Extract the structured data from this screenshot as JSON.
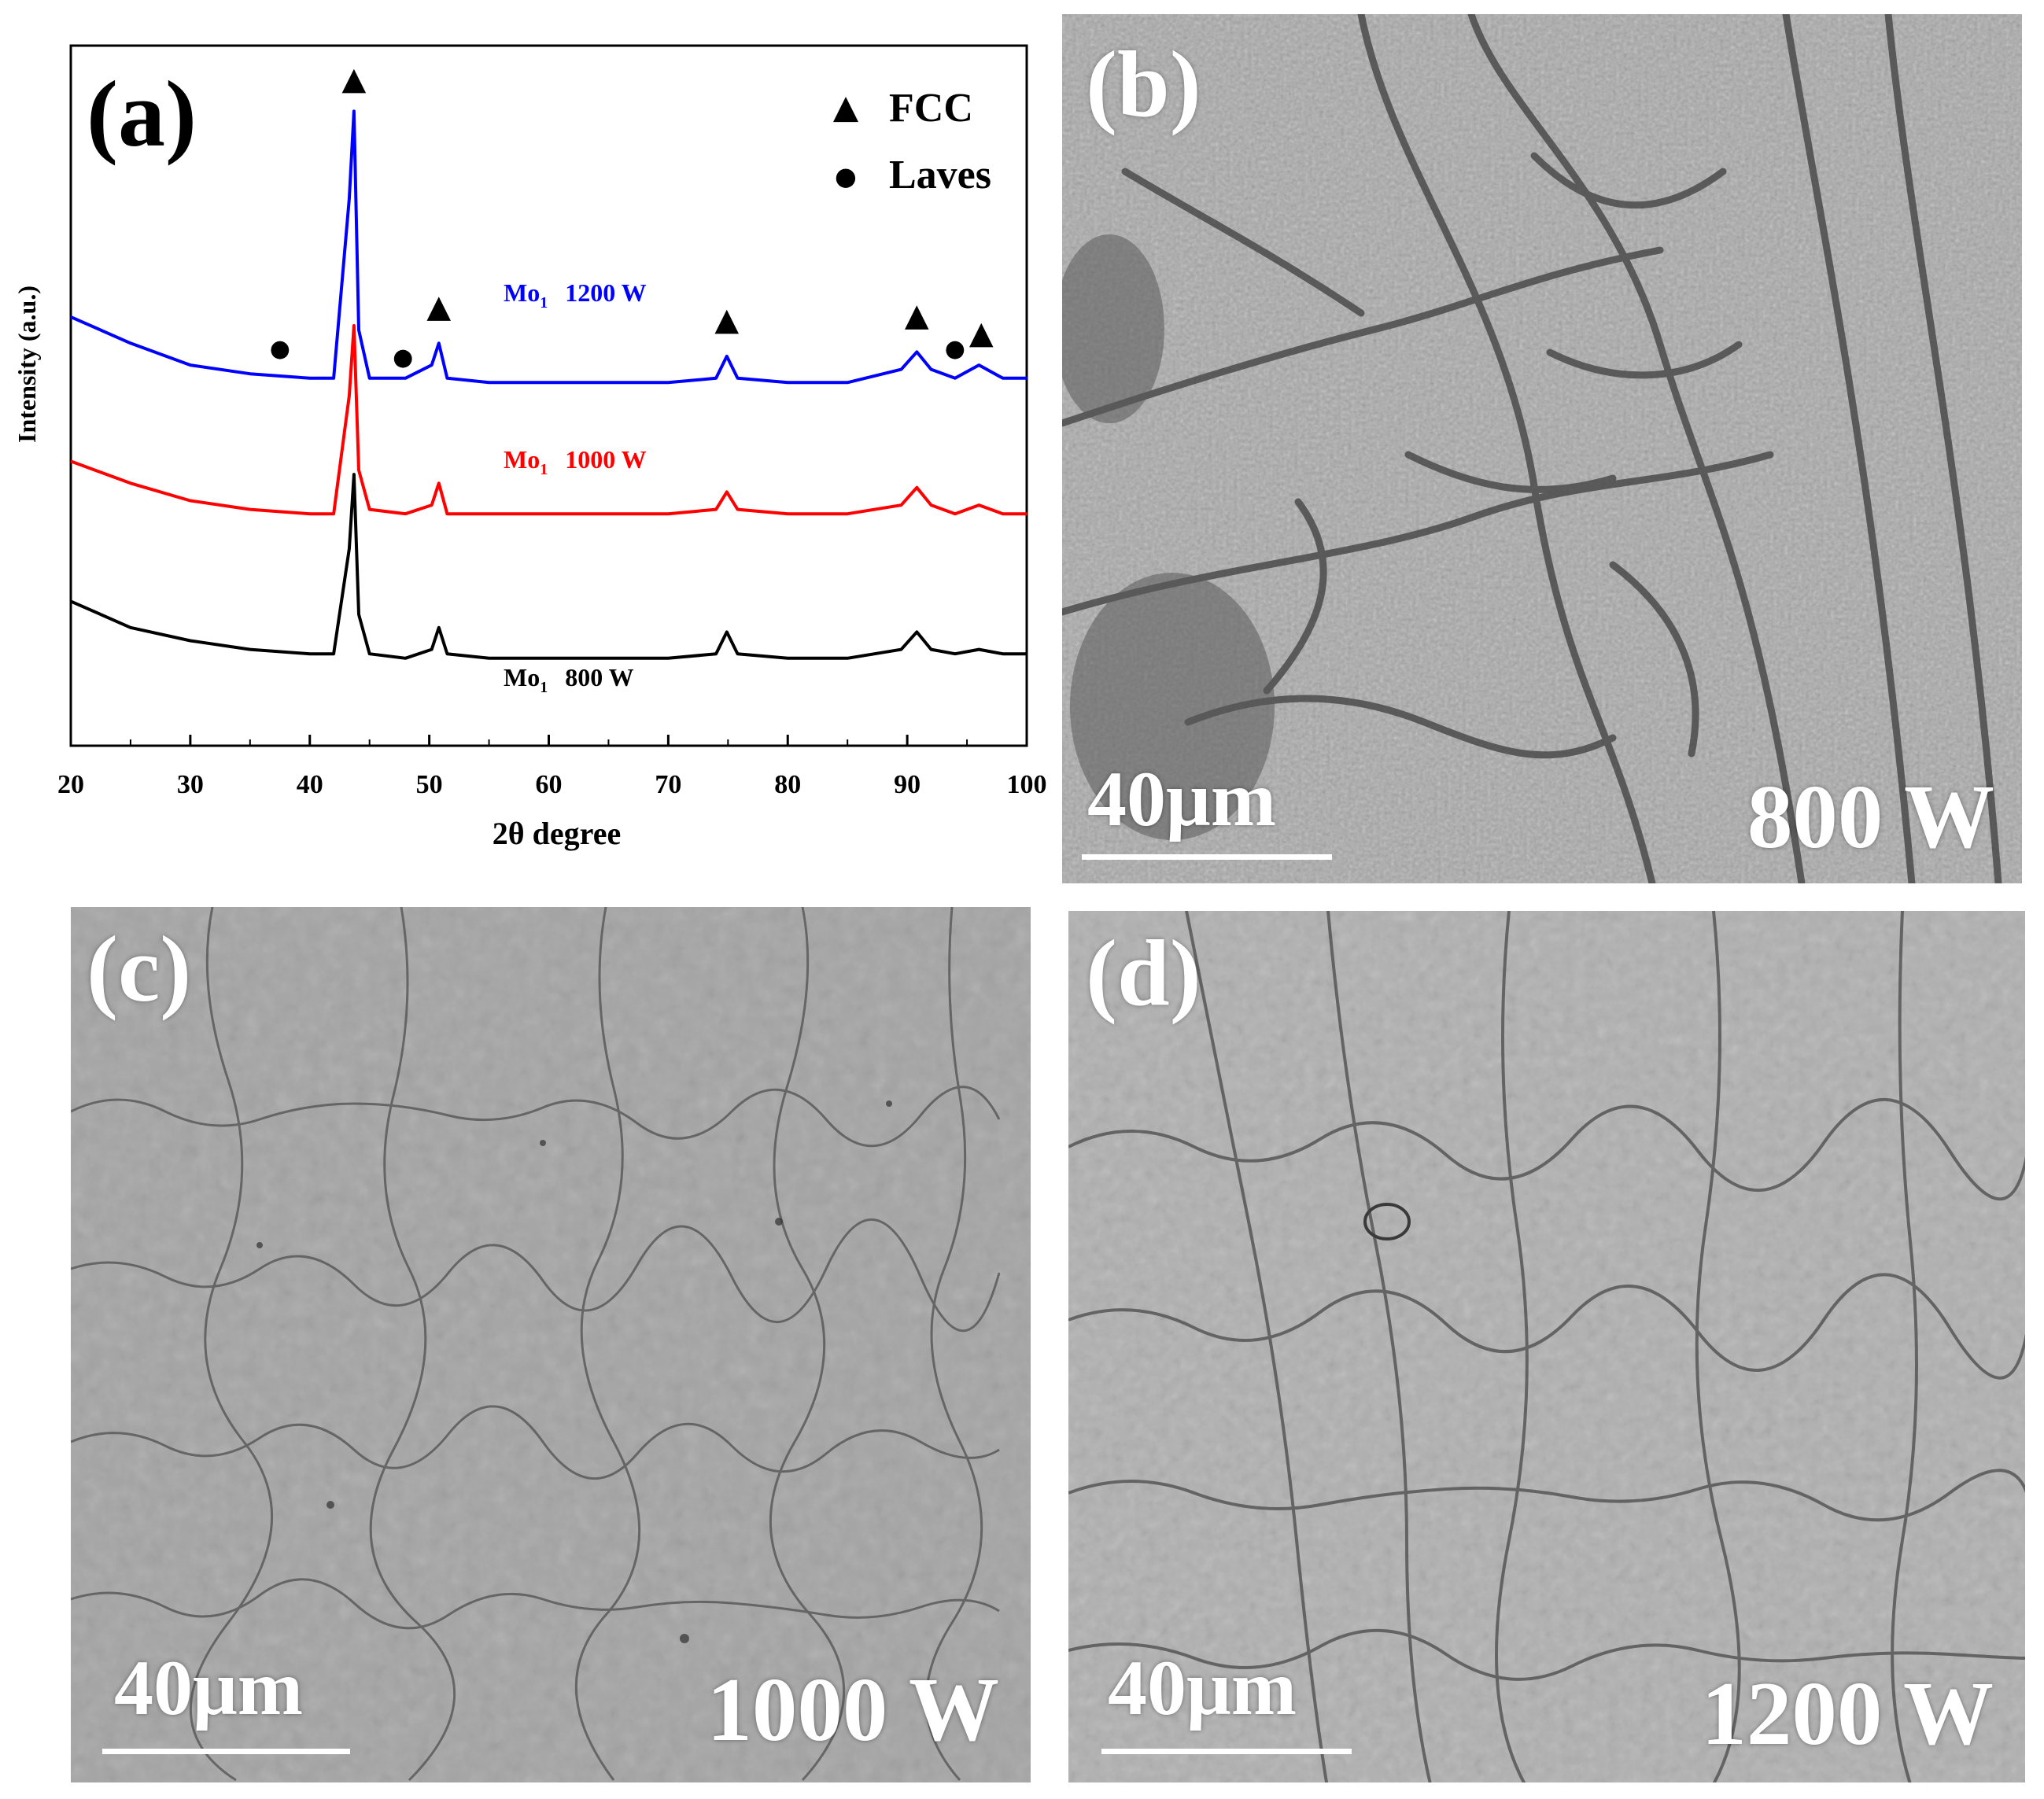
{
  "chart_data": {
    "type": "line",
    "panel_label": "(a)",
    "xlabel": "2θ degree",
    "ylabel": "Intensity (a.u.)",
    "xlim": [
      20,
      100
    ],
    "xticks": [
      20,
      30,
      40,
      50,
      60,
      70,
      80,
      90,
      100
    ],
    "grid": false,
    "legend": [
      {
        "marker": "▲",
        "label": "FCC"
      },
      {
        "marker": "●",
        "label": "Laves"
      }
    ],
    "legend_position": "top-right",
    "series": [
      {
        "name": "Mo1 800 W",
        "label_main": "Mo",
        "label_sub": "1",
        "label_power": "800 W",
        "color": "#000000",
        "x": [
          20,
          25,
          30,
          35,
          40,
          42,
          43.3,
          43.7,
          44.1,
          45,
          48,
          50.2,
          50.8,
          51.5,
          55,
          60,
          65,
          70,
          74,
          74.9,
          75.8,
          80,
          85,
          89.5,
          90.8,
          92,
          94,
          96,
          98,
          100
        ],
        "y": [
          0.33,
          0.27,
          0.24,
          0.22,
          0.21,
          0.21,
          0.45,
          0.62,
          0.3,
          0.21,
          0.2,
          0.22,
          0.27,
          0.21,
          0.2,
          0.2,
          0.2,
          0.2,
          0.21,
          0.26,
          0.21,
          0.2,
          0.2,
          0.22,
          0.26,
          0.22,
          0.21,
          0.22,
          0.21,
          0.21
        ]
      },
      {
        "name": "Mo1 1000 W",
        "label_main": "Mo",
        "label_sub": "1",
        "label_power": "1000 W",
        "color": "#ff0000",
        "x": [
          20,
          25,
          30,
          35,
          40,
          42,
          43.3,
          43.7,
          44.1,
          45,
          48,
          50.2,
          50.8,
          51.5,
          55,
          60,
          65,
          70,
          74,
          74.9,
          75.8,
          80,
          85,
          89.5,
          90.8,
          92,
          94,
          96,
          98,
          100
        ],
        "y": [
          0.65,
          0.6,
          0.56,
          0.54,
          0.53,
          0.53,
          0.8,
          0.96,
          0.63,
          0.54,
          0.53,
          0.55,
          0.6,
          0.53,
          0.53,
          0.53,
          0.53,
          0.53,
          0.54,
          0.58,
          0.54,
          0.53,
          0.53,
          0.55,
          0.59,
          0.55,
          0.53,
          0.55,
          0.53,
          0.53
        ]
      },
      {
        "name": "Mo1 1200 W",
        "label_main": "Mo",
        "label_sub": "1",
        "label_power": "1200 W",
        "color": "#0000ff",
        "x": [
          20,
          25,
          30,
          35,
          40,
          42,
          43.3,
          43.7,
          44.1,
          45,
          48,
          50.2,
          50.8,
          51.5,
          55,
          60,
          65,
          70,
          74,
          74.9,
          75.8,
          80,
          85,
          89.5,
          90.8,
          92,
          94,
          96,
          98,
          100
        ],
        "y": [
          0.98,
          0.92,
          0.87,
          0.85,
          0.84,
          0.84,
          1.25,
          1.45,
          0.95,
          0.84,
          0.84,
          0.87,
          0.92,
          0.84,
          0.83,
          0.83,
          0.83,
          0.83,
          0.84,
          0.89,
          0.84,
          0.83,
          0.83,
          0.86,
          0.9,
          0.86,
          0.84,
          0.87,
          0.84,
          0.84
        ]
      }
    ],
    "annotations": [
      {
        "symbol": "▲",
        "x": 43.7,
        "y": 1.5
      },
      {
        "symbol": "▲",
        "x": 50.8,
        "y": 0.98
      },
      {
        "symbol": "▲",
        "x": 74.9,
        "y": 0.95
      },
      {
        "symbol": "▲",
        "x": 90.8,
        "y": 0.96
      },
      {
        "symbol": "▲",
        "x": 96.2,
        "y": 0.92
      },
      {
        "symbol": "●",
        "x": 37.5,
        "y": 0.89
      },
      {
        "symbol": "●",
        "x": 47.8,
        "y": 0.87
      },
      {
        "symbol": "●",
        "x": 94.0,
        "y": 0.89
      }
    ]
  },
  "micrographs": [
    {
      "label": "(b)",
      "scale": "40μm",
      "power": "800 W",
      "tone": "dark"
    },
    {
      "label": "(c)",
      "scale": "40μm",
      "power": "1000 W",
      "tone": "medium"
    },
    {
      "label": "(d)",
      "scale": "40μm",
      "power": "1200 W",
      "tone": "light"
    }
  ]
}
